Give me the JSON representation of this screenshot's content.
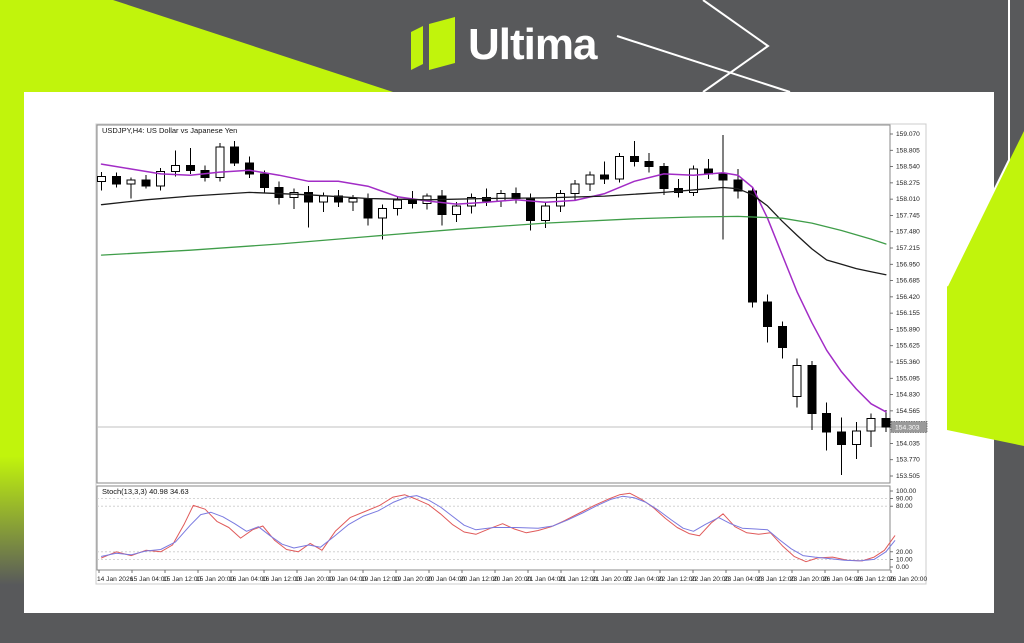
{
  "brand": {
    "logo_text": "Ultima",
    "accent_color": "#C1F40C",
    "background_color": "#58595B"
  },
  "chart": {
    "symbol_label": "USDJPY,H4: US Dollar vs Japanese Yen",
    "indicator_label": "Stoch(13,3,3) 40.98 34.63",
    "current_price": "154.303"
  },
  "chart_data": {
    "type": "candlestick",
    "title": "USDJPY,H4: US Dollar vs Japanese Yen",
    "timeframe": "H4",
    "grid": "off",
    "legend_position": "none",
    "candle_up_fill": "#ffffff",
    "candle_down_fill": "#000000",
    "candle_outline": "#000000",
    "current_price": 154.303,
    "current_price_line_color": "#c2c2c2",
    "price_box": {
      "bg": "#9a9a9a",
      "border": "#555555"
    },
    "price_axis": {
      "range": [
        153.4,
        159.2
      ],
      "ticks": [
        "159.070",
        "158.805",
        "158.540",
        "158.275",
        "158.010",
        "157.745",
        "157.480",
        "157.215",
        "156.950",
        "156.685",
        "156.420",
        "156.155",
        "155.890",
        "155.625",
        "155.360",
        "155.095",
        "154.830",
        "154.565",
        "154.035",
        "153.770",
        "153.505"
      ]
    },
    "time_axis": {
      "ticks": [
        "14 Jan 2026",
        "15 Jan 04:00",
        "15 Jan 12:00",
        "15 Jan 20:00",
        "16 Jan 04:00",
        "16 Jan 12:00",
        "16 Jan 20:00",
        "19 Jan 04:00",
        "19 Jan 12:00",
        "19 Jan 20:00",
        "20 Jan 04:00",
        "20 Jan 12:00",
        "20 Jan 20:00",
        "21 Jan 04:00",
        "21 Jan 12:00",
        "21 Jan 20:00",
        "22 Jan 04:00",
        "22 Jan 12:00",
        "22 Jan 20:00",
        "23 Jan 04:00",
        "23 Jan 12:00",
        "23 Jan 20:00",
        "26 Jan 04:00",
        "26 Jan 12:00",
        "26 Jan 20:00"
      ]
    },
    "candles": [
      [
        158.3,
        158.45,
        158.15,
        158.38
      ],
      [
        158.38,
        158.44,
        158.2,
        158.26
      ],
      [
        158.26,
        158.36,
        158.02,
        158.32
      ],
      [
        158.32,
        158.4,
        158.18,
        158.22
      ],
      [
        158.22,
        158.52,
        158.15,
        158.46
      ],
      [
        158.46,
        158.8,
        158.38,
        158.56
      ],
      [
        158.56,
        158.84,
        158.42,
        158.48
      ],
      [
        158.48,
        158.56,
        158.3,
        158.36
      ],
      [
        158.36,
        158.92,
        158.3,
        158.86
      ],
      [
        158.86,
        158.96,
        158.55,
        158.6
      ],
      [
        158.6,
        158.7,
        158.35,
        158.42
      ],
      [
        158.42,
        158.48,
        158.12,
        158.2
      ],
      [
        158.2,
        158.3,
        157.92,
        158.04
      ],
      [
        158.04,
        158.18,
        157.85,
        158.12
      ],
      [
        158.12,
        158.22,
        157.55,
        157.96
      ],
      [
        157.96,
        158.12,
        157.8,
        158.06
      ],
      [
        158.06,
        158.16,
        157.88,
        157.96
      ],
      [
        157.96,
        158.08,
        157.82,
        158.02
      ],
      [
        158.02,
        158.1,
        157.58,
        157.7
      ],
      [
        157.7,
        157.92,
        157.35,
        157.86
      ],
      [
        157.86,
        158.06,
        157.74,
        158.0
      ],
      [
        158.0,
        158.14,
        157.86,
        157.94
      ],
      [
        157.94,
        158.1,
        157.84,
        158.06
      ],
      [
        158.06,
        158.16,
        157.58,
        157.76
      ],
      [
        157.76,
        157.96,
        157.64,
        157.9
      ],
      [
        157.9,
        158.1,
        157.78,
        158.04
      ],
      [
        158.04,
        158.18,
        157.9,
        157.98
      ],
      [
        157.98,
        158.16,
        157.88,
        158.1
      ],
      [
        158.1,
        158.2,
        157.94,
        158.02
      ],
      [
        158.02,
        158.1,
        157.5,
        157.66
      ],
      [
        157.66,
        157.96,
        157.54,
        157.9
      ],
      [
        157.9,
        158.16,
        157.8,
        158.1
      ],
      [
        158.1,
        158.32,
        158.0,
        158.26
      ],
      [
        158.26,
        158.46,
        158.14,
        158.4
      ],
      [
        158.4,
        158.62,
        158.26,
        158.34
      ],
      [
        158.34,
        158.76,
        158.28,
        158.7
      ],
      [
        158.7,
        158.96,
        158.54,
        158.62
      ],
      [
        158.62,
        158.76,
        158.44,
        158.54
      ],
      [
        158.54,
        158.6,
        158.08,
        158.18
      ],
      [
        158.18,
        158.34,
        158.04,
        158.12
      ],
      [
        158.12,
        158.56,
        158.06,
        158.5
      ],
      [
        158.5,
        158.66,
        158.34,
        158.42
      ],
      [
        158.42,
        159.05,
        157.35,
        158.32
      ],
      [
        158.32,
        158.5,
        158.02,
        158.14
      ],
      [
        158.14,
        158.2,
        156.25,
        156.34
      ],
      [
        156.34,
        156.46,
        155.68,
        155.94
      ],
      [
        155.94,
        156.02,
        155.42,
        155.6
      ],
      [
        154.8,
        155.42,
        154.62,
        155.3
      ],
      [
        155.3,
        155.38,
        154.25,
        154.52
      ],
      [
        154.52,
        154.7,
        153.92,
        154.22
      ],
      [
        154.22,
        154.46,
        153.52,
        154.02
      ],
      [
        154.02,
        154.38,
        153.78,
        154.24
      ],
      [
        154.24,
        154.52,
        153.98,
        154.44
      ],
      [
        154.44,
        154.58,
        154.22,
        154.3
      ]
    ],
    "overlays": [
      {
        "name": "ma-fast-purple",
        "color": "#A22CC6",
        "width": 1.5,
        "points": [
          [
            0,
            158.58
          ],
          [
            2,
            158.5
          ],
          [
            4,
            158.42
          ],
          [
            6,
            158.4
          ],
          [
            8,
            158.45
          ],
          [
            10,
            158.48
          ],
          [
            12,
            158.4
          ],
          [
            14,
            158.3
          ],
          [
            16,
            158.3
          ],
          [
            18,
            158.22
          ],
          [
            20,
            158.05
          ],
          [
            22,
            157.98
          ],
          [
            24,
            157.93
          ],
          [
            26,
            157.96
          ],
          [
            28,
            158.0
          ],
          [
            30,
            157.96
          ],
          [
            32,
            157.99
          ],
          [
            34,
            158.1
          ],
          [
            36,
            158.3
          ],
          [
            38,
            158.42
          ],
          [
            40,
            158.4
          ],
          [
            42,
            158.44
          ],
          [
            43,
            158.4
          ],
          [
            44,
            158.2
          ],
          [
            45,
            157.7
          ],
          [
            46,
            157.1
          ],
          [
            47,
            156.5
          ],
          [
            48,
            156.0
          ],
          [
            49,
            155.55
          ],
          [
            50,
            155.2
          ],
          [
            51,
            154.92
          ],
          [
            52,
            154.68
          ],
          [
            53,
            154.55
          ]
        ]
      },
      {
        "name": "ma-mid-black",
        "color": "#1c1c1c",
        "width": 1.3,
        "points": [
          [
            0,
            157.92
          ],
          [
            3,
            158.0
          ],
          [
            6,
            158.06
          ],
          [
            10,
            158.12
          ],
          [
            14,
            158.08
          ],
          [
            18,
            158.02
          ],
          [
            22,
            158.0
          ],
          [
            26,
            158.02
          ],
          [
            30,
            158.03
          ],
          [
            34,
            158.06
          ],
          [
            38,
            158.12
          ],
          [
            41,
            158.18
          ],
          [
            42,
            158.2
          ],
          [
            43,
            158.18
          ],
          [
            44,
            158.08
          ],
          [
            45,
            157.9
          ],
          [
            46,
            157.65
          ],
          [
            47,
            157.42
          ],
          [
            48,
            157.2
          ],
          [
            49,
            157.02
          ],
          [
            50,
            156.95
          ],
          [
            51,
            156.88
          ],
          [
            52,
            156.83
          ],
          [
            53,
            156.78
          ]
        ]
      },
      {
        "name": "ma-slow-green",
        "color": "#3F9D49",
        "width": 1.3,
        "points": [
          [
            0,
            157.1
          ],
          [
            6,
            157.18
          ],
          [
            12,
            157.28
          ],
          [
            18,
            157.4
          ],
          [
            24,
            157.52
          ],
          [
            30,
            157.62
          ],
          [
            36,
            157.69
          ],
          [
            40,
            157.72
          ],
          [
            43,
            157.73
          ],
          [
            46,
            157.7
          ],
          [
            48,
            157.62
          ],
          [
            50,
            157.5
          ],
          [
            52,
            157.36
          ],
          [
            53,
            157.28
          ]
        ]
      }
    ],
    "indicator": {
      "name": "Stoch(13,3,3)",
      "values": [
        40.98,
        34.63
      ],
      "range": [
        0,
        100
      ],
      "levels": [
        90,
        80,
        20,
        10
      ],
      "level_line_color": "#c9c9c9",
      "axis_labels": [
        "100.00",
        "90.00",
        "80.00",
        "20.00",
        "10.00",
        "0.00"
      ],
      "axis_label_values": [
        100,
        90,
        80,
        20,
        10,
        0
      ],
      "series": [
        {
          "name": "stoch-main",
          "color": "#E05A5A",
          "width": 1,
          "points": [
            [
              0,
              12
            ],
            [
              1,
              20
            ],
            [
              2,
              15
            ],
            [
              3,
              22
            ],
            [
              4,
              20
            ],
            [
              4.8,
              29
            ],
            [
              5.6,
              57
            ],
            [
              6.2,
              81
            ],
            [
              7,
              76
            ],
            [
              7.8,
              60
            ],
            [
              8.6,
              52
            ],
            [
              9.4,
              38
            ],
            [
              10.2,
              49
            ],
            [
              10.9,
              54
            ],
            [
              11.7,
              35
            ],
            [
              12.5,
              23
            ],
            [
              13.3,
              20
            ],
            [
              14.1,
              31
            ],
            [
              14.9,
              22
            ],
            [
              15.8,
              47
            ],
            [
              16.8,
              65
            ],
            [
              17.8,
              73
            ],
            [
              18.8,
              81
            ],
            [
              19.7,
              92
            ],
            [
              20.5,
              95
            ],
            [
              21.3,
              89
            ],
            [
              22.1,
              82
            ],
            [
              22.9,
              70
            ],
            [
              23.7,
              56
            ],
            [
              24.5,
              46
            ],
            [
              25.3,
              43
            ],
            [
              26.3,
              51
            ],
            [
              27.1,
              57
            ],
            [
              27.9,
              50
            ],
            [
              28.7,
              45
            ],
            [
              29.5,
              48
            ],
            [
              30.4,
              53
            ],
            [
              31.3,
              61
            ],
            [
              32.3,
              71
            ],
            [
              33.3,
              81
            ],
            [
              34.2,
              89
            ],
            [
              35,
              95
            ],
            [
              35.7,
              97
            ],
            [
              36.5,
              89
            ],
            [
              37.3,
              78
            ],
            [
              38.1,
              64
            ],
            [
              38.9,
              52
            ],
            [
              39.7,
              44
            ],
            [
              40.4,
              41
            ],
            [
              41.2,
              58
            ],
            [
              42,
              70
            ],
            [
              42.8,
              53
            ],
            [
              43.6,
              45
            ],
            [
              44.4,
              43
            ],
            [
              45.2,
              45
            ],
            [
              46,
              28
            ],
            [
              46.8,
              14
            ],
            [
              47.6,
              7
            ],
            [
              48.4,
              12
            ],
            [
              49.4,
              13
            ],
            [
              50.4,
              9
            ],
            [
              51.4,
              8
            ],
            [
              52.2,
              13
            ],
            [
              52.9,
              22
            ],
            [
              53.6,
              41
            ]
          ]
        },
        {
          "name": "stoch-signal",
          "color": "#7A7AE0",
          "width": 1,
          "points": [
            [
              0,
              14
            ],
            [
              1,
              18
            ],
            [
              2,
              16
            ],
            [
              3,
              21
            ],
            [
              4,
              23
            ],
            [
              5,
              33
            ],
            [
              6,
              55
            ],
            [
              6.7,
              69
            ],
            [
              7.4,
              72
            ],
            [
              8.2,
              66
            ],
            [
              9,
              57
            ],
            [
              9.8,
              47
            ],
            [
              10.6,
              53
            ],
            [
              11.4,
              41
            ],
            [
              12.2,
              30
            ],
            [
              13,
              25
            ],
            [
              14,
              29
            ],
            [
              14.8,
              26
            ],
            [
              15.7,
              40
            ],
            [
              16.7,
              56
            ],
            [
              17.7,
              67
            ],
            [
              18.7,
              74
            ],
            [
              19.7,
              85
            ],
            [
              20.6,
              92
            ],
            [
              21.3,
              94
            ],
            [
              22.1,
              88
            ],
            [
              22.9,
              79
            ],
            [
              23.7,
              67
            ],
            [
              24.5,
              55
            ],
            [
              25.3,
              49
            ],
            [
              26.5,
              52
            ],
            [
              28,
              52
            ],
            [
              29.5,
              51
            ],
            [
              30.5,
              54
            ],
            [
              31.5,
              62
            ],
            [
              32.5,
              71
            ],
            [
              33.5,
              81
            ],
            [
              34.4,
              89
            ],
            [
              35.2,
              93
            ],
            [
              36,
              91
            ],
            [
              36.8,
              85
            ],
            [
              37.6,
              75
            ],
            [
              38.5,
              62
            ],
            [
              39.3,
              51
            ],
            [
              40,
              47
            ],
            [
              40.8,
              56
            ],
            [
              41.7,
              65
            ],
            [
              42.5,
              57
            ],
            [
              43.3,
              51
            ],
            [
              44.2,
              50
            ],
            [
              45,
              49
            ],
            [
              45.8,
              36
            ],
            [
              46.6,
              24
            ],
            [
              47.4,
              15
            ],
            [
              48.2,
              13
            ],
            [
              49.2,
              11
            ],
            [
              50.2,
              9
            ],
            [
              51.2,
              8
            ],
            [
              52.2,
              10
            ],
            [
              53,
              20
            ],
            [
              53.6,
              34.6
            ]
          ]
        }
      ]
    }
  }
}
